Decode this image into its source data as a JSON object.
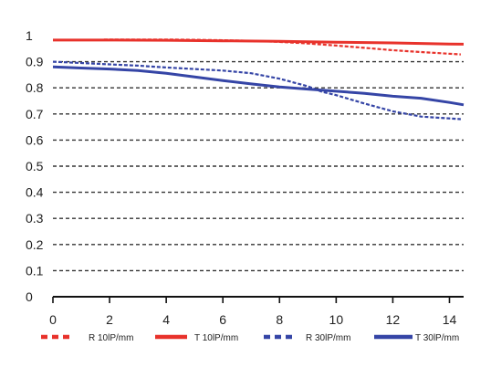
{
  "chart_data": {
    "type": "line",
    "title": "",
    "xlabel": "",
    "ylabel": "",
    "xlim": [
      0,
      14.5
    ],
    "ylim": [
      0,
      1
    ],
    "x_ticks": [
      0,
      2,
      4,
      6,
      8,
      10,
      12,
      14
    ],
    "y_ticks": [
      0,
      0.1,
      0.2,
      0.3,
      0.4,
      0.5,
      0.6,
      0.7,
      0.8,
      0.9,
      1
    ],
    "x_tick_labels": [
      "0",
      "2",
      "4",
      "6",
      "8",
      "10",
      "12",
      "14"
    ],
    "y_tick_labels": [
      "0",
      "0.1",
      "0.2",
      "0.3",
      "0.4",
      "0.5",
      "0.6",
      "0.7",
      "0.8",
      "0.9",
      "1"
    ],
    "grid": "horizontal-dashed",
    "legend_position": "bottom",
    "series": [
      {
        "name": "R 10lP/mm",
        "color": "#e8322b",
        "style": "dashed",
        "points": [
          [
            1.8,
            0.985
          ],
          [
            3,
            0.985
          ],
          [
            4,
            0.985
          ],
          [
            5,
            0.984
          ],
          [
            6,
            0.982
          ],
          [
            7,
            0.98
          ],
          [
            8,
            0.976
          ],
          [
            9,
            0.97
          ],
          [
            10,
            0.962
          ],
          [
            11,
            0.953
          ],
          [
            12,
            0.944
          ],
          [
            13,
            0.937
          ],
          [
            14.4,
            0.928
          ]
        ]
      },
      {
        "name": "T 10lP/mm",
        "color": "#e8322b",
        "style": "solid",
        "points": [
          [
            0,
            0.983
          ],
          [
            2,
            0.983
          ],
          [
            4,
            0.982
          ],
          [
            6,
            0.98
          ],
          [
            8,
            0.978
          ],
          [
            10,
            0.975
          ],
          [
            12,
            0.972
          ],
          [
            14,
            0.968
          ],
          [
            14.5,
            0.967
          ]
        ]
      },
      {
        "name": "R 30lP/mm",
        "color": "#3545a6",
        "style": "dashed",
        "points": [
          [
            0,
            0.9
          ],
          [
            1,
            0.895
          ],
          [
            2,
            0.89
          ],
          [
            3,
            0.885
          ],
          [
            4,
            0.878
          ],
          [
            5,
            0.872
          ],
          [
            6,
            0.866
          ],
          [
            7,
            0.856
          ],
          [
            8,
            0.835
          ],
          [
            9,
            0.806
          ],
          [
            9.5,
            0.785
          ],
          [
            10,
            0.772
          ],
          [
            11,
            0.74
          ],
          [
            12,
            0.71
          ],
          [
            13,
            0.69
          ],
          [
            14.4,
            0.68
          ]
        ]
      },
      {
        "name": "T 30lP/mm",
        "color": "#3545a6",
        "style": "solid",
        "points": [
          [
            0,
            0.88
          ],
          [
            1,
            0.876
          ],
          [
            2,
            0.872
          ],
          [
            3,
            0.866
          ],
          [
            4,
            0.856
          ],
          [
            5,
            0.842
          ],
          [
            6,
            0.828
          ],
          [
            7,
            0.815
          ],
          [
            8,
            0.803
          ],
          [
            9,
            0.795
          ],
          [
            10,
            0.787
          ],
          [
            11,
            0.779
          ],
          [
            12,
            0.768
          ],
          [
            13,
            0.76
          ],
          [
            14,
            0.744
          ],
          [
            14.5,
            0.735
          ]
        ]
      }
    ]
  }
}
